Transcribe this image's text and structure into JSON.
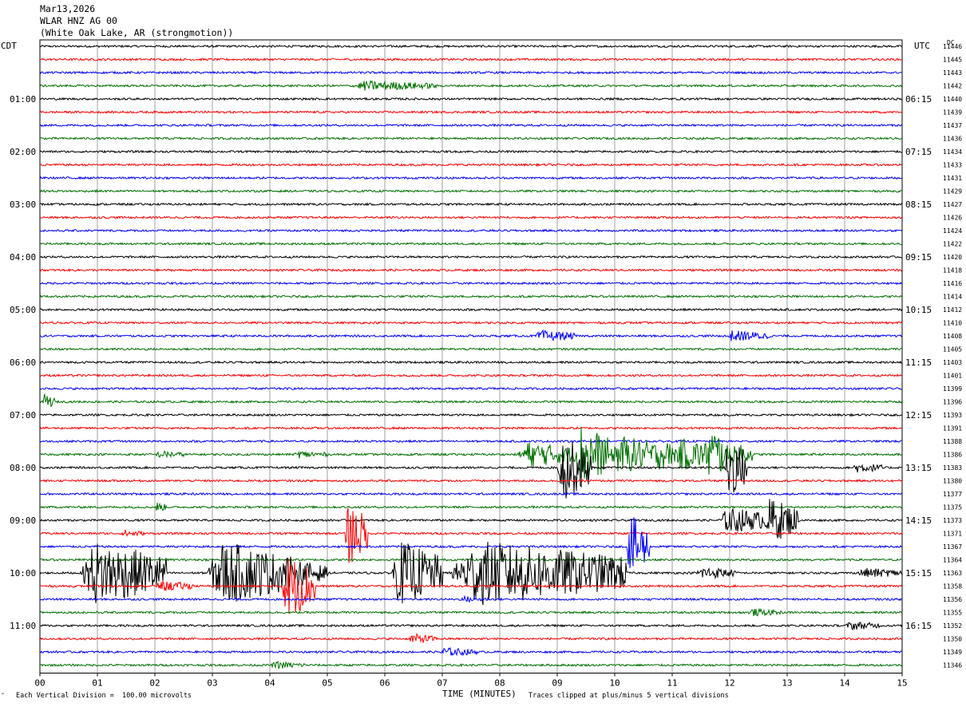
{
  "header": {
    "date": "Mar13,2026",
    "station": "WLAR HNZ AG 00",
    "location": "(White Oak Lake, AR (strongmotion))"
  },
  "left_tz": "CDT",
  "right_tz": "UTC",
  "dc_header": "DC",
  "x_axis_title": "TIME (MINUTES)",
  "footer_left_mark": "″",
  "footer_left": "Each Vertical Division =  100.00 microvolts",
  "footer_right": "Traces clipped at plus/minus 5 vertical divisions",
  "colors": {
    "trace_cycle": [
      "#000000",
      "#ff0000",
      "#0000ff",
      "#007000"
    ],
    "grid": "#888888"
  },
  "chart_data": {
    "type": "line",
    "subtype": "helicorder",
    "x": {
      "unit": "minutes",
      "range": [
        0,
        15
      ],
      "ticks": [
        "00",
        "01",
        "02",
        "03",
        "04",
        "05",
        "06",
        "07",
        "08",
        "09",
        "10",
        "11",
        "12",
        "13",
        "14",
        "15"
      ]
    },
    "grid": true,
    "rows_per_hour": 4,
    "left_hour_labels": [
      "01:00",
      "02:00",
      "03:00",
      "04:00",
      "05:00",
      "06:00",
      "07:00",
      "08:00",
      "09:00",
      "10:00",
      "11:00"
    ],
    "right_hour_labels": [
      "06:15",
      "07:15",
      "08:15",
      "09:15",
      "10:15",
      "11:15",
      "12:15",
      "13:15",
      "14:15",
      "15:15",
      "16:15"
    ],
    "hour_label_rows": [
      4,
      8,
      12,
      16,
      20,
      24,
      28,
      32,
      36,
      40,
      44
    ],
    "traces": [
      {
        "dc": "11446"
      },
      {
        "dc": "11445"
      },
      {
        "dc": "11443"
      },
      {
        "dc": "11442",
        "events": [
          {
            "t": 5.4,
            "d": 1.5,
            "a": 0.8
          }
        ]
      },
      {
        "dc": "11440"
      },
      {
        "dc": "11439"
      },
      {
        "dc": "11437"
      },
      {
        "dc": "11436"
      },
      {
        "dc": "11434"
      },
      {
        "dc": "11433"
      },
      {
        "dc": "11431"
      },
      {
        "dc": "11429"
      },
      {
        "dc": "11427"
      },
      {
        "dc": "11426"
      },
      {
        "dc": "11424"
      },
      {
        "dc": "11422"
      },
      {
        "dc": "11420"
      },
      {
        "dc": "11418"
      },
      {
        "dc": "11416"
      },
      {
        "dc": "11414"
      },
      {
        "dc": "11412"
      },
      {
        "dc": "11410"
      },
      {
        "dc": "11408",
        "events": [
          {
            "t": 8.6,
            "d": 0.7,
            "a": 0.9
          },
          {
            "t": 11.9,
            "d": 0.8,
            "a": 0.9
          }
        ]
      },
      {
        "dc": "11405"
      },
      {
        "dc": "11403"
      },
      {
        "dc": "11401"
      },
      {
        "dc": "11399"
      },
      {
        "dc": "11396",
        "events": [
          {
            "t": 0.05,
            "d": 0.2,
            "a": 1.2
          }
        ]
      },
      {
        "dc": "11393"
      },
      {
        "dc": "11391"
      },
      {
        "dc": "11388"
      },
      {
        "dc": "11386",
        "events": [
          {
            "t": 2.0,
            "d": 0.5,
            "a": 0.6
          },
          {
            "t": 4.4,
            "d": 0.6,
            "a": 0.6
          },
          {
            "t": 8.3,
            "d": 1.1,
            "a": 2.0
          },
          {
            "t": 9.3,
            "d": 0.6,
            "a": 5.0
          },
          {
            "t": 9.9,
            "d": 1.0,
            "a": 3.0
          },
          {
            "t": 10.7,
            "d": 0.4,
            "a": 2.5
          },
          {
            "t": 11.0,
            "d": 1.0,
            "a": 2.5
          },
          {
            "t": 11.6,
            "d": 0.3,
            "a": 5.0
          },
          {
            "t": 11.9,
            "d": 0.5,
            "a": 2.0
          }
        ]
      },
      {
        "dc": "11383",
        "events": [
          {
            "t": 9.0,
            "d": 0.6,
            "a": 5.0
          },
          {
            "t": 11.9,
            "d": 0.4,
            "a": 5.0
          },
          {
            "t": 14.1,
            "d": 0.6,
            "a": 0.8
          }
        ]
      },
      {
        "dc": "11380"
      },
      {
        "dc": "11377"
      },
      {
        "dc": "11375",
        "events": [
          {
            "t": 2.0,
            "d": 0.2,
            "a": 0.8
          }
        ]
      },
      {
        "dc": "11373",
        "events": [
          {
            "t": 11.8,
            "d": 1.0,
            "a": 2.0
          },
          {
            "t": 12.6,
            "d": 0.6,
            "a": 3.5
          }
        ]
      },
      {
        "dc": "11371",
        "events": [
          {
            "t": 5.3,
            "d": 0.4,
            "a": 5.0
          },
          {
            "t": 1.4,
            "d": 0.4,
            "a": 0.6
          }
        ]
      },
      {
        "dc": "11367",
        "events": [
          {
            "t": 10.2,
            "d": 0.4,
            "a": 5.0
          }
        ]
      },
      {
        "dc": "11364"
      },
      {
        "dc": "11363",
        "events": [
          {
            "t": 0.7,
            "d": 1.5,
            "a": 5.0
          },
          {
            "t": 2.9,
            "d": 1.5,
            "a": 5.0
          },
          {
            "t": 4.4,
            "d": 0.6,
            "a": 2.0
          },
          {
            "t": 6.1,
            "d": 0.9,
            "a": 5.0
          },
          {
            "t": 7.1,
            "d": 3.1,
            "a": 5.0
          },
          {
            "t": 11.4,
            "d": 0.7,
            "a": 1.0
          },
          {
            "t": 14.2,
            "d": 0.8,
            "a": 0.8
          }
        ]
      },
      {
        "dc": "11358",
        "events": [
          {
            "t": 4.2,
            "d": 0.6,
            "a": 5.0
          },
          {
            "t": 2.0,
            "d": 0.7,
            "a": 0.8
          }
        ]
      },
      {
        "dc": "11356",
        "events": [
          {
            "t": 7.3,
            "d": 0.5,
            "a": 0.5
          }
        ]
      },
      {
        "dc": "11355",
        "events": [
          {
            "t": 12.3,
            "d": 0.6,
            "a": 0.6
          }
        ]
      },
      {
        "dc": "11352",
        "events": [
          {
            "t": 14.0,
            "d": 0.6,
            "a": 0.7
          }
        ]
      },
      {
        "dc": "11350",
        "events": [
          {
            "t": 6.4,
            "d": 0.5,
            "a": 0.8
          }
        ]
      },
      {
        "dc": "11349",
        "events": [
          {
            "t": 6.9,
            "d": 0.7,
            "a": 0.7
          }
        ]
      },
      {
        "dc": "11346",
        "events": [
          {
            "t": 4.0,
            "d": 0.6,
            "a": 0.6
          }
        ]
      }
    ]
  }
}
